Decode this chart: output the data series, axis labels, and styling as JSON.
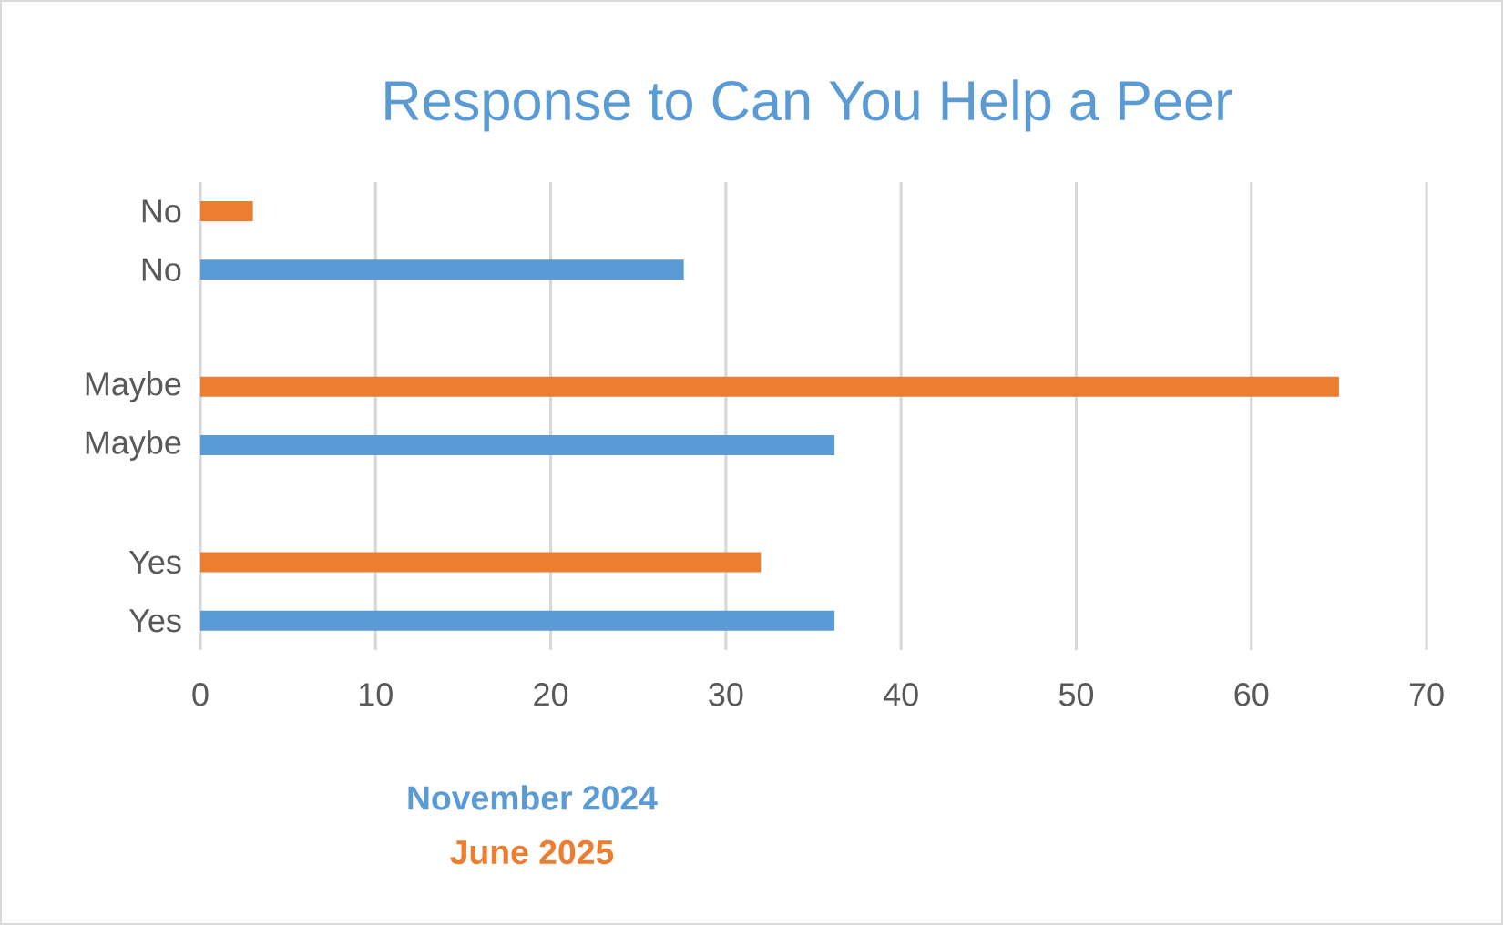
{
  "chart_data": {
    "type": "bar",
    "orientation": "horizontal",
    "title": "Response to Can You Help a Peer",
    "categories": [
      "No",
      "No",
      "Maybe",
      "Maybe",
      "Yes",
      "Yes"
    ],
    "series": [
      {
        "name": "November 2024",
        "color": "#5b9bd5",
        "values": [
          null,
          27.6,
          null,
          36.2,
          null,
          36.2
        ]
      },
      {
        "name": "June 2025",
        "color": "#ed7d31",
        "values": [
          3,
          null,
          65,
          null,
          32,
          null
        ]
      }
    ],
    "xlim": [
      0,
      70
    ],
    "xticks": [
      0,
      10,
      20,
      30,
      40,
      50,
      60,
      70
    ],
    "grid": "x",
    "legend": "bottom"
  }
}
